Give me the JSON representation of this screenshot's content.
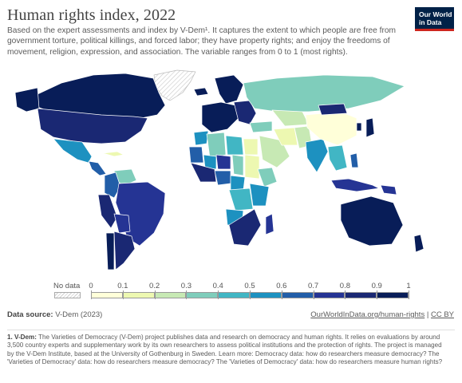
{
  "title": "Human rights index, 2022",
  "subtitle": "Based on the expert assessments and index by V-Dem¹. It captures the extent to which people are free from government torture, political killings, and forced labor; they have property rights; and enjoy the freedoms of movement, religion, expression, and association. The variable ranges from 0 to 1 (most rights).",
  "logo": {
    "line1": "Our World",
    "line2": "in Data",
    "bg": "#002147",
    "accent": "#ce261e"
  },
  "legend": {
    "no_data_label": "No data",
    "ticks": [
      "0",
      "0.1",
      "0.2",
      "0.3",
      "0.4",
      "0.5",
      "0.6",
      "0.7",
      "0.8",
      "0.9",
      "1"
    ],
    "colors": [
      "#ffffd9",
      "#edf8b1",
      "#c7e9b4",
      "#7fcdbb",
      "#41b6c4",
      "#1d91c0",
      "#225ea8",
      "#253494",
      "#1a2873",
      "#081d58"
    ]
  },
  "map": {
    "regions": [
      {
        "name": "Greenland",
        "value": null
      },
      {
        "name": "Canada",
        "value": 0.95
      },
      {
        "name": "Alaska",
        "value": 0.95
      },
      {
        "name": "United States",
        "value": 0.85
      },
      {
        "name": "Mexico",
        "value": 0.55
      },
      {
        "name": "Central America",
        "value": 0.6
      },
      {
        "name": "Cuba",
        "value": 0.15
      },
      {
        "name": "Venezuela",
        "value": 0.3
      },
      {
        "name": "Colombia",
        "value": 0.65
      },
      {
        "name": "Peru",
        "value": 0.8
      },
      {
        "name": "Brazil",
        "value": 0.72
      },
      {
        "name": "Bolivia",
        "value": 0.7
      },
      {
        "name": "Chile",
        "value": 0.9
      },
      {
        "name": "Argentina",
        "value": 0.85
      },
      {
        "name": "Iceland",
        "value": 0.95
      },
      {
        "name": "Scandinavia",
        "value": 0.95
      },
      {
        "name": "Western Europe",
        "value": 0.92
      },
      {
        "name": "Eastern Europe",
        "value": 0.85
      },
      {
        "name": "Russia",
        "value": 0.3
      },
      {
        "name": "Morocco",
        "value": 0.5
      },
      {
        "name": "Algeria",
        "value": 0.35
      },
      {
        "name": "Libya",
        "value": 0.4
      },
      {
        "name": "Egypt",
        "value": 0.15
      },
      {
        "name": "Mauritania",
        "value": 0.6
      },
      {
        "name": "Mali",
        "value": 0.5
      },
      {
        "name": "Niger",
        "value": 0.7
      },
      {
        "name": "Chad",
        "value": 0.35
      },
      {
        "name": "Sudan",
        "value": 0.15
      },
      {
        "name": "Ethiopia",
        "value": 0.35
      },
      {
        "name": "West Africa",
        "value": 0.8
      },
      {
        "name": "Nigeria",
        "value": 0.6
      },
      {
        "name": "Central Africa",
        "value": 0.55
      },
      {
        "name": "DR Congo",
        "value": 0.4
      },
      {
        "name": "East Africa",
        "value": 0.55
      },
      {
        "name": "Angola",
        "value": 0.55
      },
      {
        "name": "Southern Africa",
        "value": 0.8
      },
      {
        "name": "Madagascar",
        "value": 0.7
      },
      {
        "name": "Turkey",
        "value": 0.3
      },
      {
        "name": "Arabian Peninsula",
        "value": 0.2
      },
      {
        "name": "Iran",
        "value": 0.1
      },
      {
        "name": "Central Asia",
        "value": 0.2
      },
      {
        "name": "Afghanistan / Pakistan",
        "value": 0.2
      },
      {
        "name": "India",
        "value": 0.5
      },
      {
        "name": "China",
        "value": 0.08
      },
      {
        "name": "Mongolia",
        "value": 0.8
      },
      {
        "name": "Southeast Asia",
        "value": 0.45
      },
      {
        "name": "Indonesia",
        "value": 0.7
      },
      {
        "name": "Japan",
        "value": 0.9
      },
      {
        "name": "South Korea",
        "value": 0.9
      },
      {
        "name": "Philippines",
        "value": 0.6
      },
      {
        "name": "Papua New Guinea",
        "value": 0.75
      },
      {
        "name": "Australia",
        "value": 0.92
      },
      {
        "name": "New Zealand",
        "value": 0.95
      }
    ]
  },
  "source": {
    "label": "Data source:",
    "text": "V-Dem (2023)"
  },
  "credit": {
    "link": "OurWorldInData.org/human-rights",
    "sep": " | ",
    "license": "CC BY"
  },
  "footnote": {
    "label": "1. V-Dem:",
    "text": "The Varieties of Democracy (V-Dem) project publishes data and research on democracy and human rights. It relies on evaluations by around 3,500 country experts and supplementary work by its own researchers to assess political institutions and the protection of rights. The project is managed by the V-Dem Institute, based at the University of Gothenburg in Sweden. Learn more: Democracy data: how do researchers measure democracy? The 'Varieties of Democracy' data: how do researchers measure democracy? The 'Varieties of Democracy' data: how do researchers measure human rights?"
  }
}
